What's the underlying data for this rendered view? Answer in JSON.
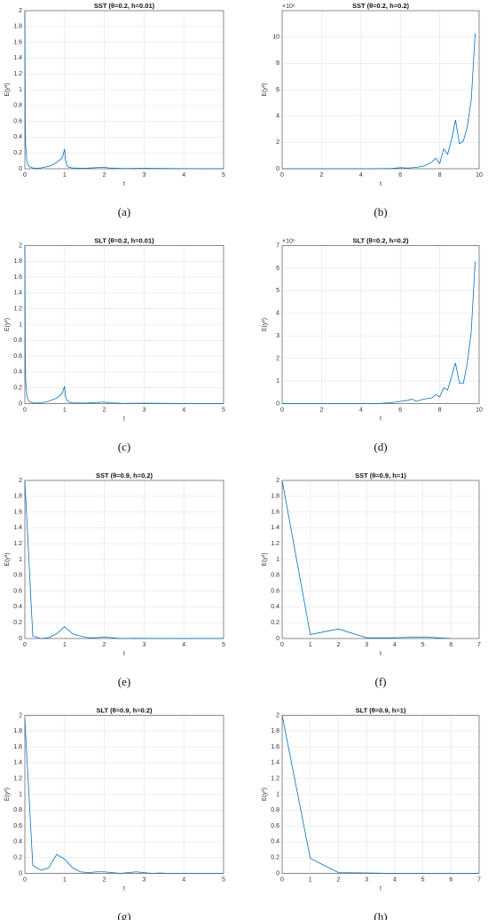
{
  "chart_data": [
    {
      "type": "line",
      "title": "SST (θ=0.2, h=0.01)",
      "xlabel": "t",
      "ylabel": "E(y²)",
      "caption": "(a)",
      "xlim": [
        0,
        5
      ],
      "xticks": [
        0,
        1,
        2,
        3,
        4,
        5
      ],
      "ylim": [
        0,
        2
      ],
      "yticks": [
        0,
        0.2,
        0.4,
        0.6,
        0.8,
        1,
        1.2,
        1.4,
        1.6,
        1.8,
        2
      ],
      "grid": true,
      "x": [
        0,
        0.01,
        0.02,
        0.05,
        0.1,
        0.2,
        0.3,
        0.4,
        0.5,
        0.6,
        0.7,
        0.8,
        0.9,
        0.95,
        1.0,
        1.02,
        1.05,
        1.1,
        1.2,
        1.5,
        2.0,
        2.1,
        2.5,
        3,
        4,
        5
      ],
      "series": [
        {
          "color": "#0072bd",
          "values": [
            2,
            0.7,
            0.3,
            0.1,
            0.03,
            0.01,
            0.005,
            0.01,
            0.02,
            0.03,
            0.05,
            0.08,
            0.12,
            0.15,
            0.25,
            0.12,
            0.05,
            0.02,
            0.01,
            0.005,
            0.02,
            0.01,
            0.003,
            0.005,
            0.001,
            0
          ]
        }
      ]
    },
    {
      "type": "line",
      "title": "SST (θ=0.2, h=0.2)",
      "xlabel": "t",
      "ylabel": "E(y²)",
      "caption": "(b)",
      "yexponent": "×10⁶",
      "xlim": [
        0,
        10
      ],
      "xticks": [
        0,
        2,
        4,
        6,
        8,
        10
      ],
      "ylim": [
        0,
        12
      ],
      "yticks": [
        0,
        2,
        4,
        6,
        8,
        10
      ],
      "grid": true,
      "x": [
        0,
        2,
        4,
        5,
        5.6,
        6,
        6.4,
        6.8,
        7.2,
        7.6,
        7.8,
        8,
        8.2,
        8.4,
        8.6,
        8.8,
        9,
        9.2,
        9.4,
        9.6,
        9.8
      ],
      "series": [
        {
          "color": "#0072bd",
          "values": [
            0,
            0,
            0,
            0.01,
            0.02,
            0.08,
            0.05,
            0.1,
            0.2,
            0.5,
            0.8,
            0.4,
            1.5,
            1.1,
            2.2,
            3.7,
            1.9,
            2.1,
            3.2,
            5.2,
            10.3
          ]
        }
      ]
    },
    {
      "type": "line",
      "title": "SLT (θ=0.2, h=0.01)",
      "xlabel": "t",
      "ylabel": "E(y²)",
      "caption": "(c)",
      "xlim": [
        0,
        5
      ],
      "xticks": [
        0,
        1,
        2,
        3,
        4,
        5
      ],
      "ylim": [
        0,
        2
      ],
      "yticks": [
        0,
        0.2,
        0.4,
        0.6,
        0.8,
        1,
        1.2,
        1.4,
        1.6,
        1.8,
        2
      ],
      "grid": true,
      "x": [
        0,
        0.01,
        0.02,
        0.05,
        0.1,
        0.2,
        0.3,
        0.4,
        0.5,
        0.6,
        0.7,
        0.8,
        0.9,
        0.95,
        1.0,
        1.02,
        1.05,
        1.1,
        1.2,
        1.5,
        2.0,
        2.1,
        2.5,
        3,
        4,
        5
      ],
      "series": [
        {
          "color": "#0072bd",
          "values": [
            2,
            0.7,
            0.3,
            0.1,
            0.03,
            0.01,
            0.005,
            0.01,
            0.02,
            0.03,
            0.05,
            0.07,
            0.11,
            0.14,
            0.22,
            0.1,
            0.05,
            0.02,
            0.01,
            0.005,
            0.02,
            0.01,
            0.003,
            0.005,
            0.001,
            0
          ]
        }
      ]
    },
    {
      "type": "line",
      "title": "SLT (θ=0.2, h=0.2)",
      "xlabel": "t",
      "ylabel": "E(y²)",
      "caption": "(d)",
      "yexponent": "×10⁵",
      "xlim": [
        0,
        10
      ],
      "xticks": [
        0,
        2,
        4,
        6,
        8,
        10
      ],
      "ylim": [
        0,
        7
      ],
      "yticks": [
        0,
        1,
        2,
        3,
        4,
        5,
        6,
        7
      ],
      "grid": true,
      "x": [
        0,
        2,
        4,
        5,
        5.6,
        6,
        6.4,
        6.6,
        6.8,
        7.2,
        7.6,
        7.8,
        8,
        8.2,
        8.4,
        8.6,
        8.8,
        9,
        9.2,
        9.4,
        9.6,
        9.8
      ],
      "series": [
        {
          "color": "#0072bd",
          "values": [
            0,
            0,
            0,
            0.01,
            0.05,
            0.1,
            0.15,
            0.2,
            0.1,
            0.2,
            0.25,
            0.4,
            0.3,
            0.7,
            0.6,
            1.2,
            1.8,
            0.9,
            0.9,
            1.8,
            3.2,
            6.3
          ]
        }
      ]
    },
    {
      "type": "line",
      "title": "SST (θ=0.9, h=0.2)",
      "xlabel": "t",
      "ylabel": "E(y²)",
      "caption": "(e)",
      "xlim": [
        0,
        5
      ],
      "xticks": [
        0,
        1,
        2,
        3,
        4,
        5
      ],
      "ylim": [
        0,
        2
      ],
      "yticks": [
        0,
        0.2,
        0.4,
        0.6,
        0.8,
        1,
        1.2,
        1.4,
        1.6,
        1.8,
        2
      ],
      "grid": true,
      "x": [
        0,
        0.2,
        0.4,
        0.6,
        0.8,
        1.0,
        1.2,
        1.4,
        1.6,
        1.8,
        2.0,
        2.2,
        2.4,
        2.6,
        2.8,
        3.0,
        3.5,
        4.0,
        4.5,
        5.0
      ],
      "series": [
        {
          "color": "#0072bd",
          "values": [
            2,
            0.03,
            0.0,
            0.01,
            0.06,
            0.15,
            0.06,
            0.03,
            0.01,
            0.01,
            0.02,
            0.01,
            0,
            0,
            0.002,
            0.001,
            0,
            0,
            0,
            0
          ]
        }
      ]
    },
    {
      "type": "line",
      "title": "SST (θ=0.9, h=1)",
      "xlabel": "t",
      "ylabel": "E(y²)",
      "caption": "(f)",
      "xlim": [
        0,
        7
      ],
      "xticks": [
        0,
        1,
        2,
        3,
        4,
        5,
        6,
        7
      ],
      "ylim": [
        0,
        2
      ],
      "yticks": [
        0,
        0.2,
        0.4,
        0.6,
        0.8,
        1,
        1.2,
        1.4,
        1.6,
        1.8,
        2
      ],
      "grid": true,
      "x": [
        0,
        1,
        2,
        3,
        4,
        5,
        6
      ],
      "series": [
        {
          "color": "#0072bd",
          "values": [
            2,
            0.05,
            0.12,
            0.01,
            0.01,
            0.02,
            0
          ]
        }
      ]
    },
    {
      "type": "line",
      "title": "SLT (θ=0.9, h=0.2)",
      "xlabel": "t",
      "ylabel": "E(y²)",
      "caption": "(g)",
      "xlim": [
        0,
        5
      ],
      "xticks": [
        0,
        1,
        2,
        3,
        4,
        5
      ],
      "ylim": [
        0,
        2
      ],
      "yticks": [
        0,
        0.2,
        0.4,
        0.6,
        0.8,
        1,
        1.2,
        1.4,
        1.6,
        1.8,
        2
      ],
      "grid": true,
      "x": [
        0,
        0.2,
        0.4,
        0.6,
        0.8,
        1.0,
        1.2,
        1.4,
        1.6,
        1.8,
        2.0,
        2.2,
        2.4,
        2.6,
        2.8,
        3.0,
        3.2,
        3.4,
        3.6,
        4.0,
        4.5,
        5.0
      ],
      "series": [
        {
          "color": "#0072bd",
          "values": [
            1.95,
            0.1,
            0.04,
            0.07,
            0.24,
            0.18,
            0.07,
            0.02,
            0.01,
            0.02,
            0.02,
            0.01,
            0,
            0.01,
            0.02,
            0.01,
            0,
            0.005,
            0,
            0,
            0,
            0
          ]
        }
      ]
    },
    {
      "type": "line",
      "title": "SLT (θ=0.9, h=1)",
      "xlabel": "t",
      "ylabel": "E(y²)",
      "caption": "(h)",
      "xlim": [
        0,
        7
      ],
      "xticks": [
        0,
        1,
        2,
        3,
        4,
        5,
        6,
        7
      ],
      "ylim": [
        0,
        2
      ],
      "yticks": [
        0,
        0.2,
        0.4,
        0.6,
        0.8,
        1,
        1.2,
        1.4,
        1.6,
        1.8,
        2
      ],
      "grid": true,
      "x": [
        0,
        1,
        2,
        3,
        4,
        5,
        6,
        7
      ],
      "series": [
        {
          "color": "#0072bd",
          "values": [
            2,
            0.19,
            0.01,
            0.005,
            0,
            0,
            0,
            0
          ]
        }
      ]
    }
  ]
}
